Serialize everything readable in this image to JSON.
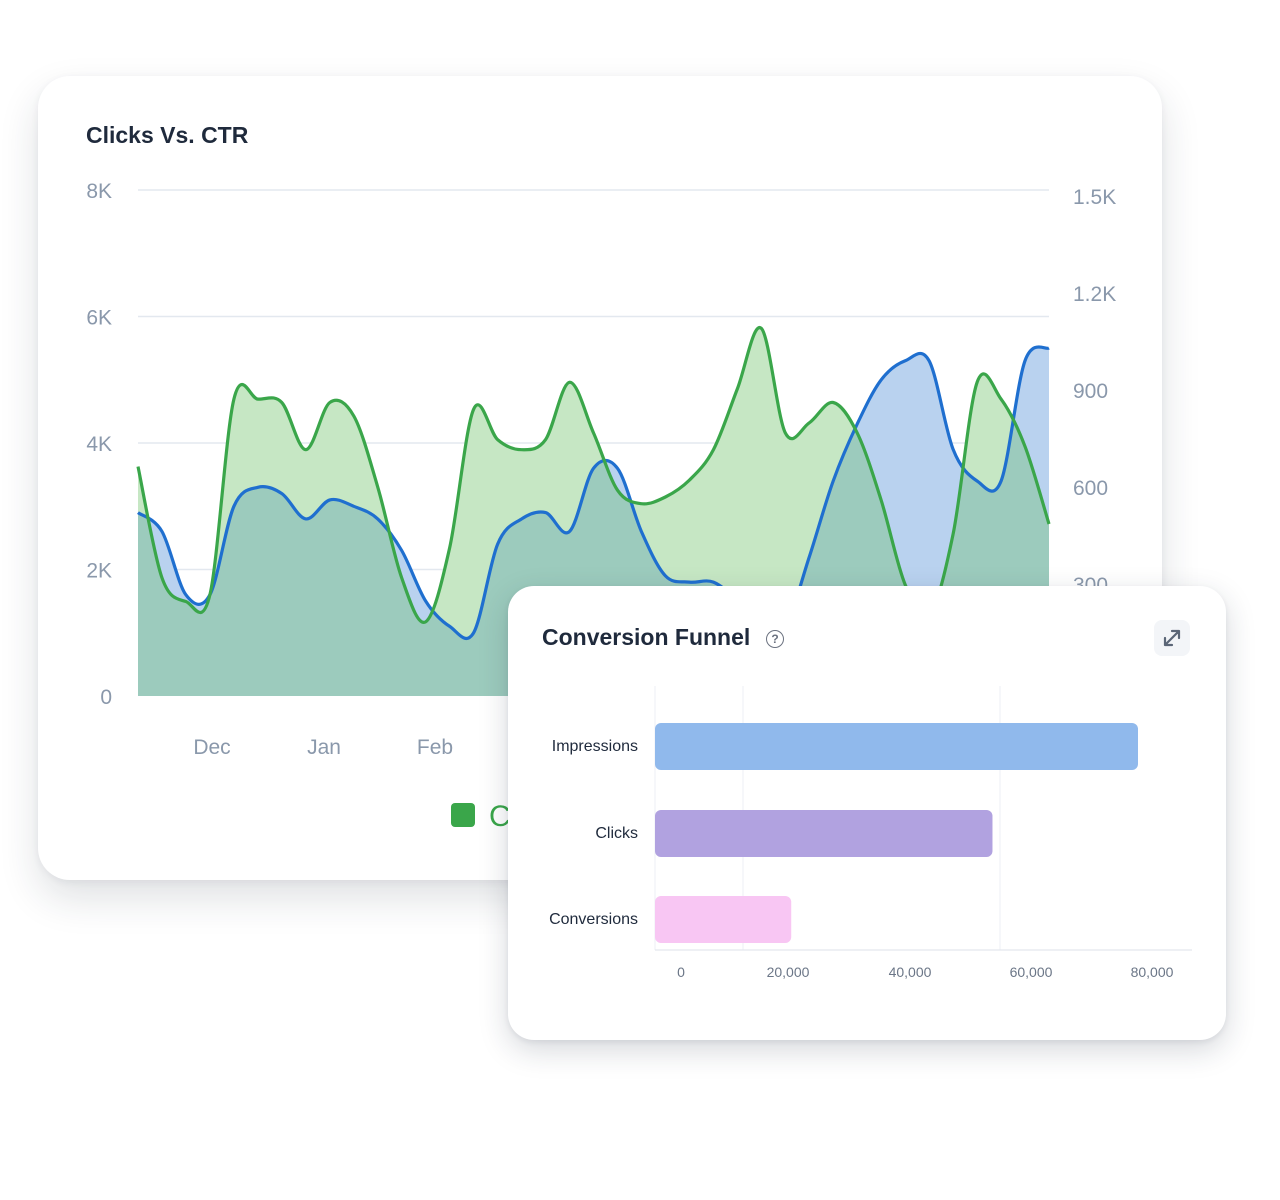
{
  "clicks_card": {
    "title": "Clicks Vs. CTR",
    "legend_label": "C"
  },
  "funnel_card": {
    "title": "Conversion Funnel",
    "help_icon": "question-circle-icon",
    "expand_icon": "expand-arrows-icon"
  },
  "colors": {
    "clicks_line": "#1f6fcf",
    "clicks_fill": "#b9d2ef",
    "ctr_line": "#3aa64a",
    "ctr_fill": "#c6e7c4",
    "overlap_fill": "#9ccbbd",
    "impressions_bar": "#90b9ec",
    "clicks_bar": "#b1a2e0",
    "conversions_bar": "#f8c6f3",
    "axis_text": "#8a98ab",
    "title_text": "#1f2a3c"
  },
  "chart_data": [
    {
      "type": "area",
      "title": "Clicks Vs. CTR",
      "x_ticks": [
        "Dec",
        "Jan",
        "Feb"
      ],
      "y_left_ticks": [
        "0",
        "2K",
        "4K",
        "6K",
        "8K"
      ],
      "y_left_range": [
        0,
        8000
      ],
      "y_right_ticks": [
        "300",
        "600",
        "900",
        "1.2K",
        "1.5K"
      ],
      "grid": true,
      "series": [
        {
          "axis": "left",
          "color": "#1f6fcf",
          "values": [
            2900,
            2600,
            1600,
            1600,
            3000,
            3300,
            3200,
            2800,
            3100,
            3000,
            2800,
            2300,
            1500,
            1100,
            1000,
            2400,
            2800,
            2900,
            2600,
            3600,
            3600,
            2600,
            1900,
            1800,
            1800,
            1500,
            1000,
            1100,
            2200,
            3400,
            4300,
            5000,
            5300,
            5300,
            3900,
            3400,
            3400,
            5300,
            5500
          ]
        },
        {
          "axis": "right",
          "color": "#3aa64a",
          "values": [
            680,
            350,
            280,
            300,
            880,
            880,
            870,
            730,
            870,
            830,
            620,
            350,
            220,
            440,
            850,
            760,
            730,
            760,
            930,
            780,
            610,
            570,
            590,
            640,
            730,
            910,
            1090,
            780,
            810,
            870,
            780,
            580,
            330,
            240,
            480,
            930,
            880,
            740,
            510
          ]
        }
      ]
    },
    {
      "type": "bar",
      "orientation": "horizontal",
      "title": "Conversion Funnel",
      "categories": [
        "Impressions",
        "Clicks",
        "Conversions"
      ],
      "values": [
        78000,
        54500,
        22000
      ],
      "x_ticks": [
        "0",
        "20,000",
        "40,000",
        "60,000",
        "80,000"
      ],
      "x_range": [
        0,
        80000
      ],
      "colors": [
        "#90b9ec",
        "#b1a2e0",
        "#f8c6f3"
      ]
    }
  ]
}
